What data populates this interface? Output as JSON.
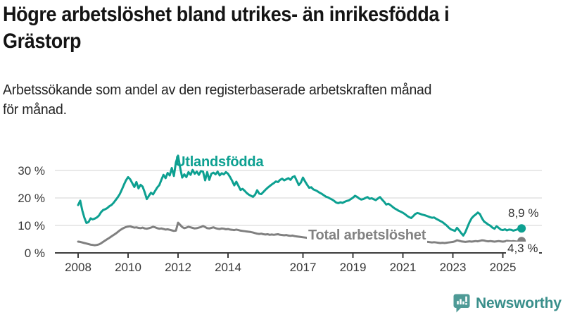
{
  "header": {
    "title": "Högre arbetslöshet bland utrikes- än inrikesfödda i\nGrästorp",
    "subtitle": "Arbetssökande som andel av den registerbaserade arbetskraften månad\nför månad."
  },
  "colors": {
    "foreign_born_line": "#0DA091",
    "total_line": "#808080",
    "axis": "#3c3c3c",
    "gridline": "#dcdcdc",
    "brand_teal": "#3A8F8B"
  },
  "chart_data": {
    "type": "line",
    "unit": "%",
    "frequency": "monthly",
    "x_start": "2008-01",
    "x_end": "2025-10",
    "grid": "horizontal-only",
    "ylim": [
      0,
      36
    ],
    "yticks": [
      {
        "label": "0 %",
        "value": 0
      },
      {
        "label": "10 %",
        "value": 10
      },
      {
        "label": "20 %",
        "value": 20
      },
      {
        "label": "30 %",
        "value": 30
      }
    ],
    "xticks": [
      {
        "label": "2008",
        "year": 2008
      },
      {
        "label": "2010",
        "year": 2010
      },
      {
        "label": "2012",
        "year": 2012
      },
      {
        "label": "2014",
        "year": 2014
      },
      {
        "label": "2017",
        "year": 2017
      },
      {
        "label": "2019",
        "year": 2019
      },
      {
        "label": "2021",
        "year": 2021
      },
      {
        "label": "2023",
        "year": 2023
      },
      {
        "label": "2025",
        "year": 2025
      }
    ],
    "series": [
      {
        "name": "Utlandsfödda",
        "color": "#0DA091",
        "end_label": "8,9 %",
        "end_value": 8.9,
        "values": [
          17.4,
          19.0,
          15.5,
          12.8,
          10.9,
          11.2,
          12.6,
          12.2,
          12.5,
          12.9,
          13.6,
          14.8,
          15.6,
          15.9,
          16.3,
          17.0,
          17.4,
          18.2,
          19.2,
          20.2,
          21.4,
          23.0,
          24.8,
          26.4,
          27.6,
          26.8,
          25.4,
          24.0,
          25.8,
          23.5,
          24.8,
          24.1,
          22.0,
          19.6,
          20.8,
          21.9,
          21.3,
          22.6,
          23.8,
          24.7,
          26.6,
          28.4,
          27.2,
          29.1,
          28.2,
          30.9,
          28.0,
          33.0,
          35.4,
          31.0,
          27.4,
          28.6,
          27.6,
          29.4,
          28.4,
          30.2,
          28.8,
          29.6,
          28.4,
          29.8,
          29.6,
          26.4,
          29.4,
          26.6,
          28.8,
          29.2,
          28.6,
          29.6,
          28.2,
          29.0,
          28.6,
          29.4,
          28.8,
          27.6,
          26.2,
          24.6,
          25.9,
          24.4,
          22.9,
          23.3,
          22.6,
          21.8,
          21.2,
          20.8,
          20.4,
          21.2,
          22.8,
          21.6,
          21.4,
          22.2,
          23.0,
          23.7,
          24.3,
          24.9,
          25.4,
          26.0,
          25.8,
          26.6,
          27.0,
          26.4,
          26.8,
          27.2,
          26.6,
          27.6,
          27.9,
          26.3,
          24.7,
          25.6,
          27.4,
          26.0,
          24.8,
          23.7,
          23.9,
          23.1,
          22.8,
          22.4,
          21.9,
          21.5,
          21.0,
          20.5,
          20.2,
          19.8,
          19.4,
          18.9,
          18.3,
          18.1,
          18.4,
          18.2,
          18.6,
          18.9,
          19.1,
          19.6,
          20.1,
          20.8,
          20.4,
          19.8,
          19.4,
          19.6,
          20.0,
          20.3,
          19.7,
          19.9,
          19.5,
          19.2,
          19.8,
          20.3,
          19.4,
          18.6,
          17.6,
          17.9,
          17.4,
          16.8,
          16.2,
          15.8,
          15.3,
          15.0,
          14.6,
          14.1,
          13.5,
          13.0,
          12.7,
          13.4,
          14.2,
          14.5,
          14.3,
          14.0,
          13.8,
          13.6,
          13.3,
          13.0,
          12.8,
          12.9,
          12.4,
          12.0,
          11.6,
          11.2,
          10.6,
          10.0,
          9.2,
          8.6,
          8.3,
          8.0,
          9.1,
          8.2,
          7.2,
          6.3,
          7.6,
          9.4,
          11.2,
          12.6,
          13.4,
          14.0,
          14.7,
          14.1,
          12.6,
          11.4,
          10.9,
          10.3,
          9.9,
          9.2,
          8.8,
          9.7,
          9.1,
          8.5,
          8.3,
          8.6,
          8.2,
          8.5,
          8.4,
          8.1,
          8.3,
          8.6,
          8.4,
          8.9
        ]
      },
      {
        "name": "Total arbetslöshet",
        "color": "#808080",
        "end_label": "4,3 %",
        "end_value": 4.3,
        "values": [
          4.1,
          4.0,
          3.8,
          3.6,
          3.4,
          3.2,
          3.0,
          2.9,
          2.8,
          2.9,
          3.1,
          3.5,
          4.0,
          4.5,
          5.0,
          5.5,
          6.0,
          6.5,
          7.0,
          7.6,
          8.2,
          8.7,
          9.1,
          9.4,
          9.6,
          9.7,
          9.4,
          9.2,
          9.3,
          9.1,
          9.0,
          9.2,
          8.9,
          8.8,
          9.0,
          9.2,
          9.5,
          9.3,
          9.0,
          8.8,
          8.9,
          8.7,
          8.5,
          8.6,
          8.4,
          8.2,
          8.0,
          8.1,
          11.0,
          10.2,
          9.4,
          9.0,
          9.2,
          9.5,
          9.3,
          9.1,
          8.9,
          9.0,
          9.2,
          9.4,
          9.8,
          9.4,
          9.0,
          8.9,
          9.1,
          9.3,
          9.0,
          8.8,
          8.7,
          8.9,
          8.8,
          8.6,
          8.7,
          8.5,
          8.4,
          8.3,
          8.5,
          8.3,
          8.1,
          8.0,
          7.9,
          7.8,
          7.7,
          7.6,
          7.4,
          7.2,
          7.0,
          6.9,
          7.0,
          6.8,
          6.7,
          6.8,
          6.6,
          6.7,
          6.6,
          6.7,
          6.8,
          6.6,
          6.5,
          6.4,
          6.5,
          6.3,
          6.2,
          6.3,
          6.1,
          6.0,
          5.9,
          5.8,
          5.7,
          5.6,
          5.5,
          5.4,
          5.5,
          5.3,
          5.2,
          5.3,
          5.1,
          5.2,
          5.1,
          5.0,
          5.1,
          5.0,
          4.9,
          4.8,
          4.9,
          4.8,
          4.7,
          4.8,
          4.7,
          4.8,
          4.9,
          4.8,
          4.9,
          4.8,
          4.7,
          4.8,
          4.7,
          4.6,
          4.7,
          4.8,
          4.7,
          4.8,
          4.9,
          5.0,
          5.2,
          5.3,
          5.5,
          5.8,
          5.9,
          5.8,
          5.7,
          5.6,
          5.5,
          5.4,
          5.3,
          5.2,
          5.1,
          5.0,
          4.9,
          4.8,
          4.7,
          4.6,
          4.5,
          4.4,
          4.3,
          4.2,
          4.1,
          4.0,
          4.0,
          3.9,
          3.8,
          3.9,
          3.8,
          3.7,
          3.6,
          3.7,
          3.6,
          3.7,
          3.8,
          3.9,
          4.0,
          4.2,
          4.6,
          4.4,
          4.2,
          4.1,
          4.0,
          4.1,
          4.2,
          4.1,
          4.2,
          4.3,
          4.2,
          4.4,
          4.6,
          4.5,
          4.3,
          4.2,
          4.3,
          4.2,
          4.1,
          4.2,
          4.3,
          4.2,
          4.1,
          4.2,
          4.4,
          4.3,
          4.2,
          4.3,
          4.2,
          4.1,
          4.2,
          4.3
        ]
      }
    ]
  },
  "footer": {
    "brand": "Newsworthy"
  }
}
